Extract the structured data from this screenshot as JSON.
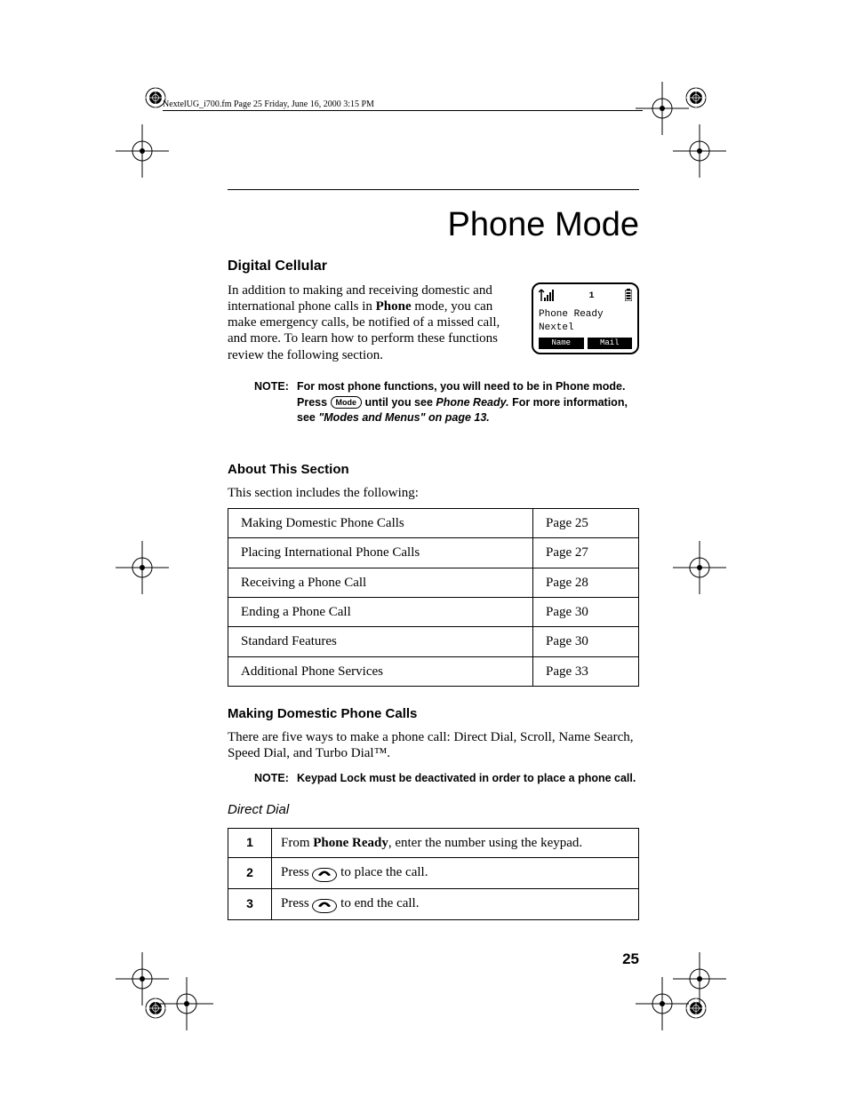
{
  "header": "NextelUG_i700.fm  Page 25  Friday, June 16, 2000  3:15 PM",
  "title": "Phone Mode",
  "section1": {
    "heading": "Digital Cellular",
    "paragraph_pre": "In addition to making and receiving domestic and international phone calls in ",
    "paragraph_bold": "Phone",
    "paragraph_post": " mode, you can make emergency calls, be notified of a missed call, and more. To learn how to perform these functions review the following section."
  },
  "phone_display": {
    "indicator": "1",
    "line1": "Phone Ready",
    "line2": "Nextel",
    "btn_left": "Name",
    "btn_right": "Mail"
  },
  "note1": {
    "label": "NOTE:",
    "l1": "For most phone functions, you will need to be in Phone mode. Press ",
    "mode": "Mode",
    "l2": " until you see ",
    "italic": "Phone Ready.",
    "l3": " For more information, see ",
    "ref": "\"Modes and Menus\" on page 13."
  },
  "section2": {
    "heading": "About This Section",
    "paragraph": "This section includes the following:"
  },
  "toc": [
    {
      "title": "Making Domestic Phone Calls",
      "page": "Page 25"
    },
    {
      "title": "Placing International Phone Calls",
      "page": "Page 27"
    },
    {
      "title": "Receiving a Phone Call",
      "page": "Page 28"
    },
    {
      "title": "Ending a Phone Call",
      "page": "Page 30"
    },
    {
      "title": "Standard Features",
      "page": "Page 30"
    },
    {
      "title": "Additional Phone Services",
      "page": "Page 33"
    }
  ],
  "section3": {
    "heading": "Making Domestic Phone Calls",
    "paragraph": "There are five ways to make a phone call: Direct Dial, Scroll, Name Search, Speed Dial, and Turbo Dial™."
  },
  "note2": {
    "label": "NOTE:",
    "text": "Keypad Lock must be deactivated in order to place a phone call."
  },
  "section4": {
    "heading": "Direct Dial"
  },
  "steps": [
    {
      "n": "1",
      "pre": "From ",
      "bold": "Phone Ready",
      "post": ", enter the number using the keypad.",
      "icon": false
    },
    {
      "n": "2",
      "pre": "Press ",
      "post": " to place the call.",
      "icon": true
    },
    {
      "n": "3",
      "pre": "Press ",
      "post": " to end the call.",
      "icon": true
    }
  ],
  "page_number": "25"
}
